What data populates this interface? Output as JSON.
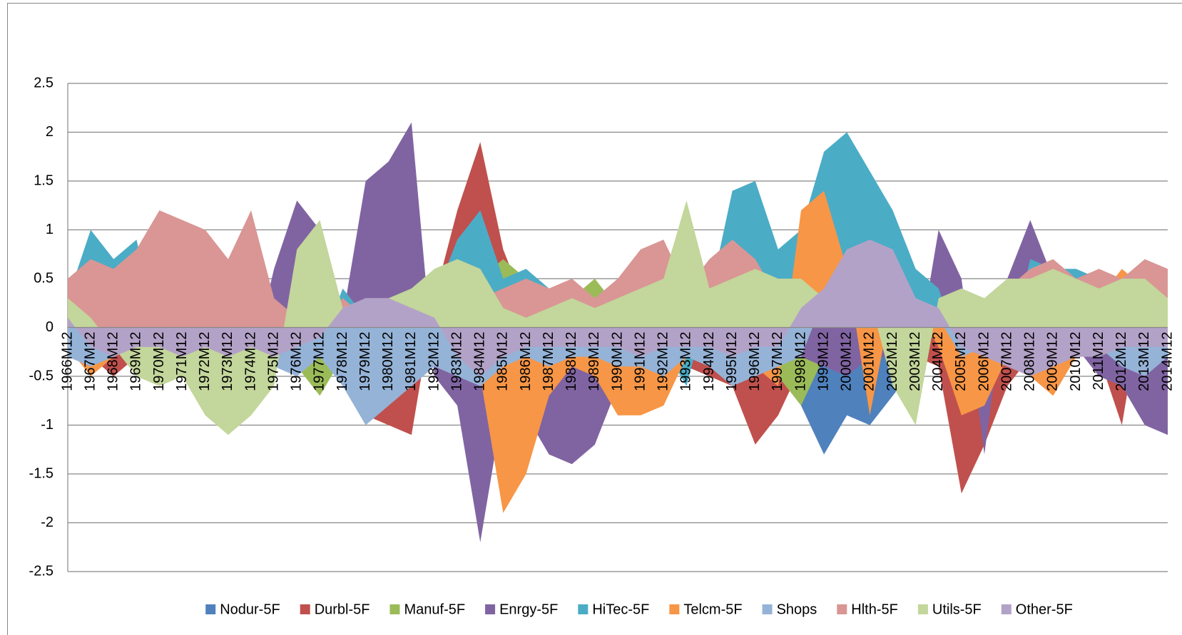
{
  "chart_data": {
    "type": "area",
    "categories": [
      "1966M12",
      "1967M12",
      "1968M12",
      "1969M12",
      "1970M12",
      "1971M12",
      "1972M12",
      "1973M12",
      "1974M12",
      "1975M12",
      "1976M12",
      "1977M12",
      "1978M12",
      "1979M12",
      "1980M12",
      "1981M12",
      "1982M12",
      "1983M12",
      "1984M12",
      "1985M12",
      "1986M12",
      "1987M12",
      "1988M12",
      "1989M12",
      "1990M12",
      "1991M12",
      "1992M12",
      "1993M12",
      "1994M12",
      "1995M12",
      "1996M12",
      "1997M12",
      "1998M12",
      "1999M12",
      "2000M12",
      "2001M12",
      "2002M12",
      "2003M12",
      "2004M12",
      "2005M12",
      "2006M12",
      "2007M12",
      "2008M12",
      "2009M12",
      "2010M12",
      "2011M12",
      "2012M12",
      "2013M12",
      "2014M12"
    ],
    "series": [
      {
        "name": "Nodur-5F",
        "color": "#4F81BD",
        "values": [
          -0.1,
          -0.2,
          -0.2,
          -0.1,
          -0.1,
          -0.1,
          -0.1,
          -0.1,
          -0.2,
          -0.1,
          -0.1,
          -0.1,
          -0.1,
          -0.2,
          -0.2,
          -0.2,
          -0.2,
          -0.3,
          -0.3,
          -0.3,
          -0.2,
          -0.2,
          -0.2,
          -0.2,
          -0.3,
          -0.3,
          -0.4,
          -0.4,
          -0.5,
          -0.5,
          -0.4,
          -0.4,
          -0.8,
          -1.3,
          -0.9,
          -1.0,
          -0.7,
          -0.4,
          -0.2,
          -0.3,
          -0.3,
          -0.3,
          0.7,
          0.6,
          0.5,
          0.5,
          0.4,
          0.3,
          0.2
        ]
      },
      {
        "name": "Durbl-5F",
        "color": "#C0504D",
        "values": [
          -0.1,
          -0.3,
          -0.5,
          -0.3,
          -0.2,
          -0.2,
          -0.3,
          -0.6,
          -0.7,
          -0.2,
          -0.3,
          -0.2,
          -0.3,
          -0.9,
          -1.0,
          -1.1,
          0.3,
          1.2,
          1.9,
          0.8,
          0.2,
          -0.2,
          -0.2,
          -0.3,
          -0.2,
          -0.3,
          -0.3,
          -0.4,
          -0.5,
          -0.6,
          -1.2,
          -0.9,
          -0.4,
          -0.2,
          -0.1,
          -0.1,
          -0.2,
          -0.3,
          -0.4,
          -1.7,
          -1.2,
          -0.6,
          -0.3,
          -0.2,
          -0.2,
          -0.3,
          -1.0,
          0.4,
          -0.5
        ]
      },
      {
        "name": "Manuf-5F",
        "color": "#9BBB59",
        "values": [
          -0.1,
          -0.1,
          -0.3,
          -0.2,
          -0.2,
          -0.1,
          -0.1,
          -0.2,
          -0.2,
          -0.3,
          -0.4,
          -0.7,
          -0.3,
          -0.2,
          -0.1,
          -0.1,
          0.2,
          0.3,
          0.5,
          0.7,
          0.5,
          0.3,
          0.3,
          0.5,
          0.2,
          0.2,
          0.1,
          0.1,
          -0.1,
          -0.2,
          -0.3,
          -0.5,
          -0.8,
          -0.3,
          -0.2,
          -0.1,
          -0.1,
          -0.1,
          -0.1,
          0.1,
          0.2,
          0.3,
          0.7,
          0.4,
          0.2,
          0.2,
          0.1,
          0.1,
          0.1
        ]
      },
      {
        "name": "Enrgy-5F",
        "color": "#8064A2",
        "values": [
          -0.2,
          -0.3,
          -0.2,
          -0.3,
          -0.2,
          -0.3,
          -0.3,
          -0.2,
          -0.4,
          0.6,
          1.3,
          1.0,
          0.1,
          1.5,
          1.7,
          2.1,
          -0.5,
          -0.8,
          -2.2,
          -0.8,
          -0.9,
          -1.3,
          -1.4,
          -1.2,
          -0.6,
          -0.3,
          -0.2,
          -0.1,
          -0.4,
          -0.5,
          -0.3,
          -0.2,
          -0.3,
          -0.4,
          -0.5,
          -0.3,
          -0.3,
          -0.4,
          1.0,
          0.5,
          -1.3,
          0.5,
          1.1,
          0.5,
          -0.2,
          -0.5,
          -0.6,
          -1.0,
          -1.1
        ]
      },
      {
        "name": "HiTec-5F",
        "color": "#4BACC6",
        "values": [
          0.3,
          1.0,
          0.7,
          0.9,
          -0.1,
          -0.2,
          -0.1,
          -0.3,
          -0.2,
          -0.2,
          -0.3,
          -0.2,
          0.4,
          0.1,
          -0.4,
          -0.5,
          0.3,
          0.9,
          1.2,
          0.5,
          0.6,
          0.4,
          -0.2,
          -0.1,
          -0.3,
          -0.2,
          -0.2,
          -0.6,
          0.3,
          1.4,
          1.5,
          0.8,
          1.0,
          1.8,
          2.0,
          1.6,
          1.2,
          0.6,
          0.4,
          -0.3,
          -0.2,
          -0.3,
          0.7,
          0.6,
          0.6,
          0.5,
          -0.3,
          -0.2,
          -0.3
        ]
      },
      {
        "name": "Telcm-5F",
        "color": "#F79646",
        "values": [
          -0.2,
          -0.5,
          -0.3,
          -0.1,
          -0.3,
          -0.2,
          -0.1,
          -0.1,
          -0.2,
          -0.1,
          -0.2,
          -0.1,
          -0.1,
          -0.2,
          -0.2,
          -0.4,
          -0.3,
          -0.2,
          -0.5,
          -1.9,
          -1.5,
          -0.7,
          -0.4,
          -0.5,
          -0.9,
          -0.9,
          -0.8,
          -0.3,
          -0.2,
          -0.2,
          -0.4,
          -0.6,
          1.2,
          1.4,
          0.6,
          -0.9,
          0.3,
          0.2,
          -0.2,
          -0.9,
          -0.8,
          -0.3,
          -0.5,
          -0.7,
          -0.3,
          0.3,
          0.6,
          0.4,
          -0.2
        ]
      },
      {
        "name": "Shops",
        "color": "#95B3D7",
        "values": [
          -0.3,
          -0.4,
          -0.3,
          -0.2,
          -0.3,
          -0.2,
          -0.2,
          -0.3,
          -0.4,
          -0.4,
          -0.5,
          -0.3,
          -0.6,
          -1.0,
          -0.8,
          -0.6,
          -0.4,
          -0.5,
          -0.6,
          -0.4,
          -0.3,
          -0.4,
          -0.3,
          -0.3,
          -0.4,
          -0.4,
          -0.5,
          -0.3,
          -0.4,
          -0.6,
          -0.5,
          -0.4,
          -0.3,
          0.3,
          0.2,
          0.4,
          0.3,
          0.2,
          0.1,
          -0.3,
          -0.2,
          -0.3,
          -0.4,
          -0.4,
          -0.3,
          -0.2,
          -0.4,
          -0.5,
          -0.3
        ]
      },
      {
        "name": "Hlth-5F",
        "color": "#D99694",
        "values": [
          0.5,
          0.7,
          0.6,
          0.8,
          1.2,
          1.1,
          1.0,
          0.7,
          1.2,
          0.3,
          0.1,
          0.0,
          0.3,
          0.1,
          0.0,
          0.2,
          0.5,
          0.4,
          0.3,
          0.4,
          0.5,
          0.4,
          0.5,
          0.3,
          0.5,
          0.8,
          0.9,
          0.4,
          0.7,
          0.9,
          0.7,
          0.3,
          0.4,
          0.2,
          0.1,
          0.2,
          0.3,
          0.1,
          0.2,
          0.3,
          0.3,
          0.4,
          0.6,
          0.7,
          0.5,
          0.6,
          0.5,
          0.7,
          0.6
        ]
      },
      {
        "name": "Utils-5F",
        "color": "#C3D69B",
        "values": [
          0.3,
          0.1,
          -0.2,
          -0.5,
          -0.6,
          -0.5,
          -0.9,
          -1.1,
          -0.9,
          -0.6,
          0.8,
          1.1,
          0.2,
          0.3,
          0.3,
          0.4,
          0.6,
          0.7,
          0.6,
          0.2,
          0.1,
          0.2,
          0.3,
          0.2,
          0.3,
          0.4,
          0.5,
          1.3,
          0.4,
          0.5,
          0.6,
          0.5,
          0.5,
          0.3,
          0.2,
          0.3,
          -0.6,
          -1.0,
          0.3,
          0.4,
          0.3,
          0.5,
          0.5,
          0.6,
          0.5,
          0.4,
          0.5,
          0.5,
          0.3
        ]
      },
      {
        "name": "Other-5F",
        "color": "#B3A2C7",
        "values": [
          0.1,
          -0.2,
          -0.3,
          -0.2,
          -0.2,
          -0.3,
          -0.2,
          -0.3,
          -0.2,
          -0.3,
          -0.2,
          -0.1,
          0.2,
          0.3,
          0.3,
          0.2,
          0.1,
          -0.3,
          -0.5,
          -0.3,
          -0.2,
          -0.2,
          -0.2,
          -0.2,
          -0.2,
          -0.3,
          -0.2,
          -0.2,
          -0.2,
          -0.3,
          -0.2,
          -0.2,
          0.2,
          0.4,
          0.8,
          0.9,
          0.8,
          0.3,
          0.2,
          -0.2,
          -0.3,
          -0.4,
          -0.5,
          -0.4,
          -0.3,
          -0.3,
          -0.2,
          -0.2,
          -0.2
        ]
      }
    ],
    "ylim": [
      -2.5,
      2.5
    ],
    "yticks": [
      2.5,
      2,
      1.5,
      1,
      0.5,
      0,
      -0.5,
      -1,
      -1.5,
      -2,
      -2.5
    ],
    "grid": true,
    "legend": "bottom"
  }
}
